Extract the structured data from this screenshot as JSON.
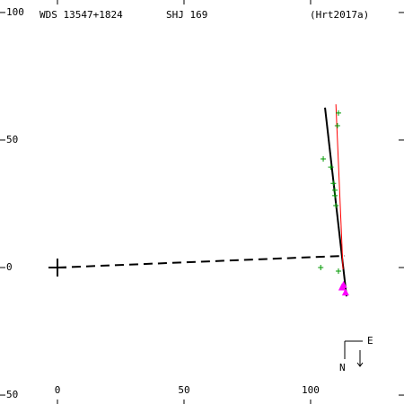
{
  "chart_data": {
    "type": "scatter",
    "title": "WDS 13547+1824",
    "subtitle": "SHJ 169",
    "reference": "(Hrt2017a)",
    "xlim": [
      -22.7,
      136.9
    ],
    "ylim": [
      -53.5,
      104.9
    ],
    "xticks": [
      0,
      50,
      100
    ],
    "yticks": [
      100,
      50,
      0,
      {
        "value": -50,
        "label": "50"
      }
    ],
    "primary": {
      "x": 0,
      "y": 0
    },
    "series": [
      {
        "color": "#009900",
        "marker": "plus",
        "x": [
          111,
          110.6,
          105,
          108,
          109,
          109.6,
          109.6,
          110,
          104,
          111
        ],
        "values": [
          60.6,
          55.6,
          42.6,
          39.4,
          33,
          30.3,
          28.2,
          24.3,
          0,
          -1.4
        ]
      },
      {
        "color": "#ff00ff",
        "marker": "triangle",
        "x": [
          113,
          112.4,
          113.8
        ],
        "values": [
          -7,
          -7.9,
          -9.9
        ]
      }
    ],
    "lines": [
      {
        "color": "#000000",
        "dashed": true,
        "x": [
          0,
          113.5
        ],
        "values": [
          0,
          4.6
        ]
      },
      {
        "color": "#000000",
        "dashed": false,
        "x": [
          105.7,
          114.2
        ],
        "values": [
          62.7,
          -11.3
        ]
      },
      {
        "color": "#ff0000",
        "dashed": false,
        "x": [
          110,
          112.8
        ],
        "values": [
          64,
          -0.7
        ]
      }
    ]
  },
  "compass": {
    "east": "E",
    "north": "N"
  }
}
